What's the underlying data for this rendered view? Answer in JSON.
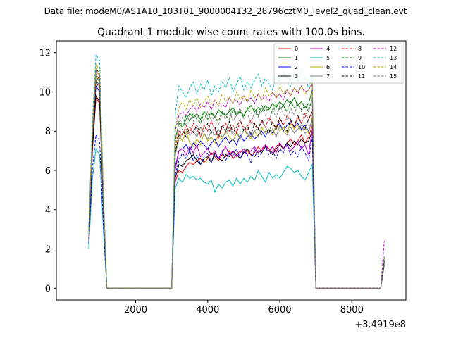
{
  "figure": {
    "suptitle": "Data file: modeM0/AS1A10_103T01_9000004132_28796cztM0_level2_quad_clean.evt"
  },
  "chart_data": {
    "type": "line",
    "title": "Quadrant 1 module wise count rates with 100.0s bins.",
    "xlabel": "",
    "ylabel": "",
    "x_offset_label": "+3.4919e8",
    "xlim": [
      -200,
      9500
    ],
    "ylim": [
      -0.6,
      12.6
    ],
    "x_ticks": [
      2000,
      4000,
      6000,
      8000
    ],
    "x_tick_labels": [
      "2000",
      "4000",
      "6000",
      "8000"
    ],
    "y_ticks": [
      0,
      2,
      4,
      6,
      8,
      10,
      12
    ],
    "y_tick_labels": [
      "0",
      "2",
      "4",
      "6",
      "8",
      "10",
      "12"
    ],
    "grid": false,
    "legend_position": "top-right",
    "segments": [
      {
        "start": 700,
        "end": 1200,
        "step": 100,
        "gap_after": true
      },
      {
        "start": 1200,
        "end": 3000,
        "step": 100
      },
      {
        "start": 3000,
        "end": 6800,
        "step": 100
      },
      {
        "start": 6800,
        "end": 7000,
        "step": 100
      },
      {
        "start": 7000,
        "end": 8800,
        "step": 100
      },
      {
        "start": 8800,
        "end": 8900,
        "step": 100
      }
    ],
    "series": [
      {
        "name": "0",
        "color": "#ff0000",
        "dash": "solid",
        "active_level": 6.6,
        "start_rise": 2.3,
        "peak": 9.7,
        "end_spike": 1.3,
        "active_values": [
          5.4,
          6.0,
          5.9,
          6.2,
          6.4,
          6.3,
          6.5,
          6.6,
          6.4,
          6.6,
          6.9,
          6.7,
          6.5,
          6.8,
          6.7,
          7.0,
          6.6,
          6.8,
          7.0,
          6.9,
          7.0,
          6.8,
          6.9,
          7.2,
          7.0,
          7.3,
          7.1,
          6.9,
          7.2,
          7.4,
          7.1,
          7.4,
          7.6,
          7.3,
          7.5,
          7.8,
          7.4,
          7.7,
          8.3
        ]
      },
      {
        "name": "1",
        "color": "#008000",
        "dash": "solid",
        "active_level": 8.7,
        "start_rise": 3.0,
        "peak": 10.8,
        "end_spike": 1.3,
        "active_values": [
          7.6,
          8.4,
          8.2,
          8.6,
          8.9,
          8.7,
          8.9,
          8.6,
          9.0,
          8.8,
          8.9,
          8.7,
          9.1,
          8.9,
          8.8,
          9.0,
          9.2,
          8.9,
          9.0,
          8.8,
          9.1,
          9.3,
          9.0,
          9.2,
          9.0,
          9.3,
          9.1,
          9.4,
          9.2,
          9.5,
          9.3,
          9.6,
          9.4,
          9.7,
          9.3,
          9.5,
          9.2,
          9.4,
          10.1
        ]
      },
      {
        "name": "2",
        "color": "#0000ff",
        "dash": "solid",
        "active_level": 7.3,
        "start_rise": 2.6,
        "peak": 10.3,
        "end_spike": 1.4,
        "active_values": [
          6.2,
          7.0,
          7.1,
          7.3,
          7.0,
          7.4,
          7.2,
          7.5,
          7.3,
          7.1,
          7.4,
          7.6,
          7.2,
          7.5,
          7.7,
          7.4,
          7.6,
          7.3,
          7.8,
          7.5,
          7.7,
          7.9,
          7.6,
          7.8,
          8.0,
          7.7,
          8.1,
          7.9,
          8.2,
          8.4,
          8.0,
          8.3,
          8.5,
          8.2,
          8.4,
          8.1,
          8.3,
          8.0,
          8.6
        ]
      },
      {
        "name": "3",
        "color": "#000000",
        "dash": "solid",
        "active_level": 6.4,
        "start_rise": 2.2,
        "peak": 9.8,
        "end_spike": 1.2,
        "active_values": [
          5.6,
          6.3,
          6.2,
          6.5,
          6.6,
          6.8,
          6.5,
          6.3,
          6.6,
          6.7,
          6.4,
          6.9,
          6.6,
          6.5,
          6.8,
          6.7,
          7.0,
          6.8,
          6.6,
          6.9,
          7.1,
          6.8,
          6.7,
          7.0,
          6.9,
          7.2,
          7.0,
          6.8,
          7.1,
          7.3,
          7.1,
          7.4,
          7.2,
          7.5,
          7.3,
          7.6,
          7.4,
          7.5,
          8.0
        ]
      },
      {
        "name": "4",
        "color": "#c000c0",
        "dash": "solid",
        "active_level": 7.8,
        "start_rise": 2.6,
        "peak": 10.6,
        "end_spike": 1.4,
        "active_values": [
          6.0,
          7.0,
          7.1,
          6.8,
          7.2,
          6.9,
          7.3,
          6.7,
          6.9,
          7.1,
          6.8,
          7.0,
          6.6,
          6.9,
          7.2,
          6.8,
          7.0,
          6.7,
          6.9,
          7.1,
          6.8,
          7.0,
          7.2,
          6.9,
          7.1,
          7.3,
          7.0,
          7.2,
          6.9,
          7.4,
          7.1,
          7.3,
          7.0,
          7.2,
          7.5,
          7.1,
          7.3,
          6.8,
          8.1
        ]
      },
      {
        "name": "5",
        "color": "#00c0c0",
        "dash": "solid",
        "active_level": 5.6,
        "start_rise": 2.0,
        "peak": 7.1,
        "end_spike": 1.3,
        "active_values": [
          5.1,
          5.6,
          5.4,
          5.8,
          5.6,
          5.7,
          5.5,
          5.6,
          5.4,
          5.3,
          5.5,
          4.9,
          5.3,
          5.1,
          5.4,
          5.5,
          5.2,
          5.6,
          5.3,
          5.6,
          5.4,
          5.7,
          5.5,
          6.0,
          5.7,
          5.4,
          5.9,
          5.6,
          5.8,
          5.6,
          5.9,
          6.2,
          6.1,
          5.9,
          6.0,
          5.7,
          5.5,
          5.9,
          6.3
        ]
      },
      {
        "name": "6",
        "color": "#b0b000",
        "dash": "solid",
        "active_level": 8.0,
        "start_rise": 2.7,
        "peak": 11.1,
        "end_spike": 1.4,
        "active_values": [
          7.0,
          7.8,
          7.5,
          8.0,
          7.4,
          7.2,
          7.6,
          7.3,
          7.9,
          7.5,
          7.7,
          7.4,
          7.8,
          7.6,
          8.0,
          7.7,
          7.5,
          7.9,
          7.6,
          8.1,
          7.8,
          7.6,
          8.0,
          7.7,
          8.2,
          7.9,
          8.1,
          7.8,
          8.3,
          8.0,
          8.2,
          7.9,
          8.4,
          8.1,
          8.3,
          8.0,
          8.2,
          7.9,
          8.7
        ]
      },
      {
        "name": "7",
        "color": "#808080",
        "dash": "solid",
        "active_level": 7.9,
        "start_rise": 2.6,
        "peak": 10.6,
        "end_spike": 1.3,
        "active_values": [
          6.8,
          7.6,
          7.9,
          8.1,
          7.8,
          8.0,
          7.7,
          8.2,
          7.9,
          7.6,
          8.0,
          7.8,
          8.1,
          7.7,
          7.9,
          8.2,
          7.8,
          8.0,
          7.6,
          8.1,
          7.9,
          7.7,
          8.0,
          8.2,
          7.8,
          8.0,
          7.9,
          8.1,
          7.7,
          8.3,
          8.0,
          7.8,
          8.2,
          7.9,
          8.1,
          8.3,
          7.9,
          8.0,
          8.6
        ]
      },
      {
        "name": "8",
        "color": "#ff0000",
        "dash": "dashed",
        "active_level": 8.2,
        "start_rise": 2.4,
        "peak": 10.9,
        "end_spike": 1.5,
        "active_values": [
          7.2,
          8.0,
          7.8,
          8.3,
          7.9,
          8.4,
          8.1,
          7.7,
          8.3,
          8.0,
          8.5,
          8.1,
          7.6,
          8.2,
          8.4,
          8.0,
          8.3,
          7.9,
          8.5,
          8.2,
          8.0,
          8.6,
          8.3,
          8.1,
          8.5,
          8.2,
          8.7,
          8.4,
          8.1,
          8.6,
          8.3,
          8.8,
          8.5,
          8.2,
          8.7,
          8.4,
          8.9,
          8.6,
          9.0
        ]
      },
      {
        "name": "9",
        "color": "#008000",
        "dash": "dashed",
        "active_level": 8.7,
        "start_rise": 3.0,
        "peak": 11.2,
        "end_spike": 1.5,
        "active_values": [
          7.4,
          8.5,
          8.3,
          8.8,
          8.5,
          8.9,
          8.6,
          8.4,
          8.9,
          8.6,
          9.0,
          8.7,
          8.5,
          9.0,
          8.8,
          8.6,
          9.1,
          8.8,
          9.0,
          8.7,
          9.2,
          8.9,
          9.1,
          8.8,
          9.3,
          9.0,
          9.2,
          8.9,
          9.4,
          9.1,
          9.3,
          9.0,
          9.5,
          9.2,
          9.4,
          9.1,
          9.3,
          9.0,
          9.7
        ]
      },
      {
        "name": "10",
        "color": "#0000ff",
        "dash": "dashed",
        "active_level": 7.0,
        "start_rise": 2.3,
        "peak": 7.8,
        "end_spike": 1.6,
        "active_values": [
          5.8,
          6.5,
          6.9,
          6.6,
          7.0,
          6.5,
          6.8,
          6.3,
          6.7,
          6.9,
          6.4,
          6.8,
          6.6,
          7.0,
          6.5,
          6.9,
          6.7,
          7.1,
          6.6,
          7.0,
          6.8,
          6.4,
          7.1,
          6.7,
          6.9,
          7.2,
          6.8,
          7.0,
          6.6,
          7.1,
          6.9,
          7.3,
          6.8,
          7.0,
          6.7,
          7.2,
          6.9,
          6.5,
          7.7
        ]
      },
      {
        "name": "11",
        "color": "#000000",
        "dash": "dashed",
        "active_level": 8.0,
        "start_rise": 2.5,
        "peak": 10.5,
        "end_spike": 1.4,
        "active_values": [
          6.9,
          7.8,
          8.1,
          7.7,
          8.2,
          7.9,
          8.3,
          7.8,
          8.0,
          8.4,
          7.9,
          8.2,
          7.7,
          8.3,
          8.0,
          8.5,
          7.9,
          8.2,
          8.6,
          8.0,
          8.3,
          7.8,
          8.4,
          8.1,
          8.6,
          8.2,
          7.9,
          8.5,
          8.1,
          8.7,
          8.3,
          8.0,
          8.6,
          8.2,
          8.8,
          8.4,
          8.1,
          8.6,
          9.0
        ]
      },
      {
        "name": "12",
        "color": "#c000c0",
        "dash": "dashed",
        "active_level": 9.2,
        "start_rise": 2.9,
        "peak": 11.1,
        "end_spike": 2.4,
        "active_values": [
          8.0,
          8.8,
          9.0,
          8.8,
          9.1,
          9.3,
          9.0,
          9.4,
          9.2,
          9.5,
          9.1,
          9.6,
          9.3,
          9.4,
          9.2,
          9.7,
          9.4,
          9.6,
          9.3,
          9.8,
          9.5,
          9.7,
          9.4,
          9.9,
          9.6,
          9.8,
          9.5,
          10.0,
          9.7,
          9.9,
          9.6,
          10.1,
          9.8,
          10.2,
          9.9,
          10.3,
          10.0,
          10.1,
          10.4
        ]
      },
      {
        "name": "13",
        "color": "#00c0c0",
        "dash": "dashed",
        "active_level": 10.0,
        "start_rise": 3.1,
        "peak": 11.9,
        "end_spike": 1.6,
        "active_values": [
          8.9,
          10.3,
          10.0,
          9.7,
          10.2,
          10.5,
          9.9,
          10.4,
          10.1,
          10.6,
          9.8,
          10.3,
          10.0,
          10.5,
          10.2,
          10.7,
          10.0,
          10.4,
          10.8,
          10.1,
          10.5,
          10.2,
          10.6,
          10.9,
          10.3,
          10.7,
          10.4,
          10.1,
          10.8,
          10.5,
          11.0,
          10.6,
          10.3,
          10.9,
          10.5,
          11.1,
          10.7,
          10.2,
          10.8
        ]
      },
      {
        "name": "14",
        "color": "#b0b000",
        "dash": "dashed",
        "active_level": 9.5,
        "start_rise": 2.8,
        "peak": 11.4,
        "end_spike": 1.6,
        "active_values": [
          8.2,
          9.2,
          9.5,
          9.1,
          9.6,
          9.3,
          9.7,
          9.2,
          9.5,
          9.8,
          9.4,
          9.6,
          9.3,
          9.9,
          9.5,
          9.7,
          9.4,
          10.0,
          9.6,
          9.8,
          9.5,
          10.1,
          9.7,
          9.9,
          9.6,
          10.2,
          9.8,
          10.0,
          9.7,
          10.3,
          9.9,
          10.1,
          9.8,
          10.2,
          10.0,
          10.3,
          9.9,
          10.1,
          10.5
        ]
      },
      {
        "name": "15",
        "color": "#808080",
        "dash": "dashed",
        "active_level": 8.6,
        "start_rise": 2.7,
        "peak": 10.9,
        "end_spike": 1.5,
        "active_values": [
          7.6,
          8.4,
          8.7,
          8.3,
          8.8,
          8.5,
          8.9,
          8.4,
          8.6,
          9.0,
          8.5,
          8.8,
          8.3,
          8.9,
          8.6,
          9.1,
          8.5,
          8.8,
          9.2,
          8.6,
          8.9,
          8.4,
          9.0,
          8.7,
          9.2,
          8.8,
          8.5,
          9.1,
          8.7,
          9.3,
          8.9,
          8.6,
          9.2,
          8.8,
          9.4,
          9.0,
          8.7,
          9.2,
          9.6
        ]
      }
    ]
  }
}
